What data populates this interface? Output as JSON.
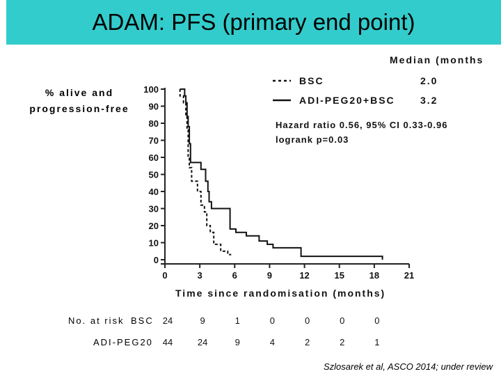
{
  "slide": {
    "title": "ADAM: PFS (primary end point)",
    "citation": "Szlosarek et al, ASCO 2014;  under review"
  },
  "legend": {
    "header": "Median (months",
    "items": [
      {
        "name": "BSC",
        "median": "2.0",
        "style": "dashed"
      },
      {
        "name": "ADI-PEG20+BSC",
        "median": "3.2",
        "style": "solid"
      }
    ]
  },
  "stats": {
    "hazard": "Hazard ratio 0.56, 95% CI 0.33-0.96",
    "logrank": "logrank p=0.03"
  },
  "chart_data": {
    "type": "line",
    "subtype": "kaplan-meier step",
    "ylabel_lines": [
      "% alive and",
      "progression-free"
    ],
    "xlabel": "Time since randomisation (months)",
    "xlim": [
      0,
      21
    ],
    "ylim": [
      0,
      100
    ],
    "xticks": [
      0,
      3,
      6,
      9,
      12,
      15,
      18,
      21
    ],
    "yticks": [
      0,
      10,
      20,
      30,
      40,
      50,
      60,
      70,
      80,
      90,
      100
    ],
    "grid": false,
    "series": [
      {
        "name": "BSC",
        "style": "dashed",
        "points": [
          [
            1.3,
            100
          ],
          [
            1.3,
            96
          ],
          [
            1.6,
            96
          ],
          [
            1.6,
            92
          ],
          [
            1.8,
            92
          ],
          [
            1.8,
            84
          ],
          [
            1.9,
            84
          ],
          [
            1.9,
            76
          ],
          [
            2.0,
            76
          ],
          [
            2.0,
            60
          ],
          [
            2.1,
            60
          ],
          [
            2.1,
            54
          ],
          [
            2.3,
            54
          ],
          [
            2.3,
            46
          ],
          [
            2.8,
            46
          ],
          [
            2.8,
            40
          ],
          [
            3.1,
            40
          ],
          [
            3.1,
            32
          ],
          [
            3.4,
            32
          ],
          [
            3.4,
            28
          ],
          [
            3.6,
            28
          ],
          [
            3.6,
            20
          ],
          [
            3.9,
            20
          ],
          [
            3.9,
            16
          ],
          [
            4.2,
            16
          ],
          [
            4.2,
            9
          ],
          [
            4.8,
            9
          ],
          [
            4.8,
            5
          ],
          [
            5.4,
            5
          ],
          [
            5.4,
            3
          ],
          [
            5.7,
            3
          ]
        ]
      },
      {
        "name": "ADI-PEG20+BSC",
        "style": "solid",
        "points": [
          [
            1.3,
            100
          ],
          [
            1.7,
            100
          ],
          [
            1.7,
            96
          ],
          [
            1.8,
            96
          ],
          [
            1.8,
            92
          ],
          [
            1.9,
            92
          ],
          [
            1.9,
            84
          ],
          [
            2.0,
            84
          ],
          [
            2.0,
            78
          ],
          [
            2.1,
            78
          ],
          [
            2.1,
            68
          ],
          [
            2.2,
            68
          ],
          [
            2.2,
            57
          ],
          [
            3.1,
            57
          ],
          [
            3.1,
            53
          ],
          [
            3.5,
            53
          ],
          [
            3.5,
            46
          ],
          [
            3.7,
            46
          ],
          [
            3.7,
            40
          ],
          [
            3.8,
            40
          ],
          [
            3.8,
            34
          ],
          [
            4.0,
            34
          ],
          [
            4.0,
            30
          ],
          [
            5.6,
            30
          ],
          [
            5.6,
            18
          ],
          [
            6.1,
            18
          ],
          [
            6.1,
            16
          ],
          [
            7.0,
            16
          ],
          [
            7.0,
            14
          ],
          [
            8.1,
            14
          ],
          [
            8.1,
            11
          ],
          [
            8.8,
            11
          ],
          [
            8.8,
            9
          ],
          [
            9.3,
            9
          ],
          [
            9.3,
            7
          ],
          [
            11.7,
            7
          ],
          [
            11.7,
            2
          ],
          [
            18.7,
            2
          ],
          [
            18.7,
            0
          ]
        ]
      }
    ],
    "at_risk": {
      "title": "No. at risk",
      "times": [
        0,
        3,
        6,
        9,
        12,
        15,
        18
      ],
      "rows": [
        {
          "name": "BSC",
          "values": [
            "24",
            "9",
            "1",
            "0",
            "0",
            "0",
            "0"
          ]
        },
        {
          "name": "ADI-PEG20",
          "values": [
            "44",
            "24",
            "9",
            "4",
            "2",
            "2",
            "1"
          ]
        }
      ]
    }
  }
}
